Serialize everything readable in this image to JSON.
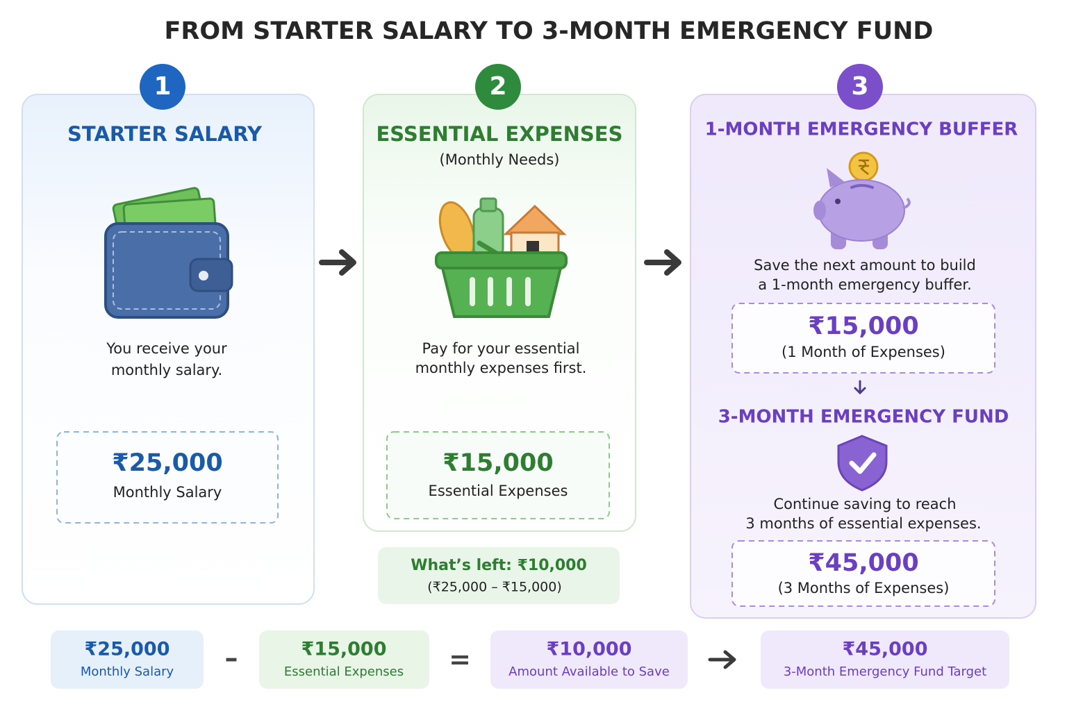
{
  "title": "FROM STARTER SALARY TO 3-MONTH EMERGENCY FUND",
  "steps": [
    {
      "number": "1",
      "heading": "STARTER SALARY",
      "description": [
        "You receive your",
        "monthly salary."
      ],
      "amount": "₹25,000",
      "amount_label": "Monthly Salary"
    },
    {
      "number": "2",
      "heading": "ESSENTIAL EXPENSES",
      "subheading": "(Monthly Needs)",
      "description": [
        "Pay for your essential",
        "monthly expenses first."
      ],
      "amount": "₹15,000",
      "amount_label": "Essential Expenses",
      "note": {
        "text": "What’s left: ₹10,000",
        "detail": "(₹25,000 – ₹15,000)"
      }
    },
    {
      "number": "3",
      "heading": "1-MONTH EMERGENCY BUFFER",
      "description": [
        "Save the next amount to build",
        "a 1-month emergency buffer."
      ],
      "amount": "₹15,000",
      "amount_label": "(1 Month of Expenses)",
      "goal": {
        "heading": "3-MONTH EMERGENCY FUND",
        "description": [
          "Continue saving to reach",
          "3 months of essential expenses."
        ],
        "amount": "₹45,000",
        "amount_label": "(3 Months of Expenses)"
      }
    }
  ],
  "summary": [
    {
      "amount": "₹25,000",
      "label": "Monthly Salary"
    },
    {
      "amount": "₹15,000",
      "label": "Essential Expenses"
    },
    {
      "amount": "₹10,000",
      "label": "Amount Available to Save"
    },
    {
      "amount": "₹45,000",
      "label": "3-Month Emergency Fund Target"
    }
  ],
  "operators": [
    "–",
    "="
  ]
}
